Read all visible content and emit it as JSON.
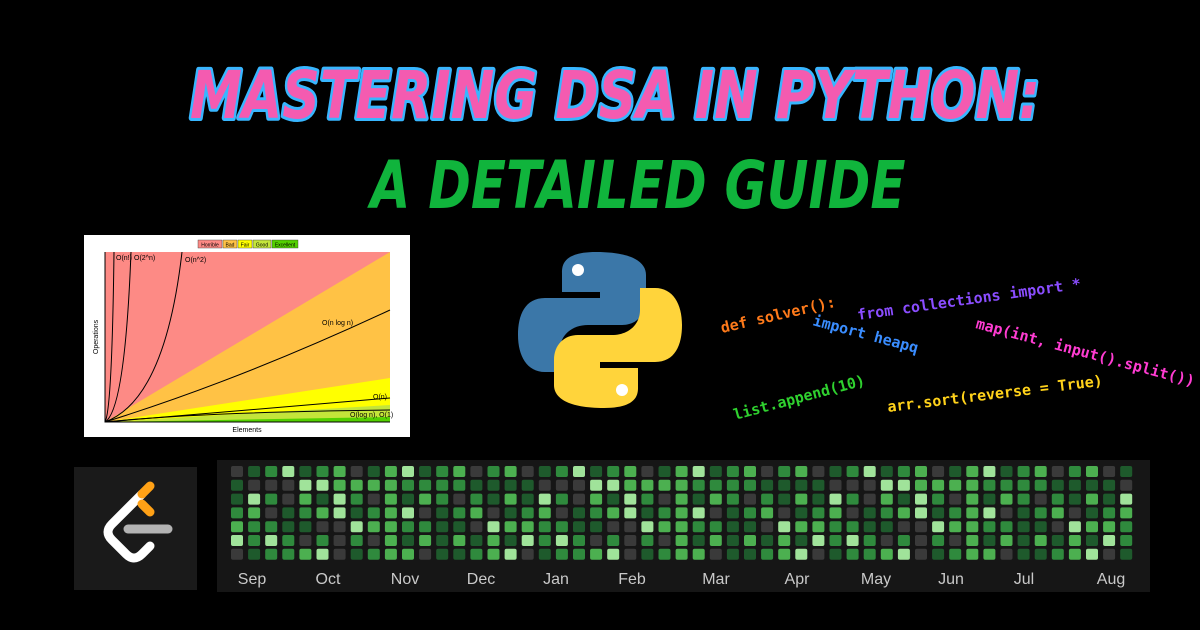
{
  "title": {
    "line1": "MASTERING DSA IN PYTHON:",
    "line2": "A DETAILED GUIDE"
  },
  "complexity_chart": {
    "legend": [
      "Horrible",
      "Bad",
      "Fair",
      "Good",
      "Excellent"
    ],
    "curve_labels": [
      "O(n!)",
      "O(2^n)",
      "O(n^2)",
      "O(n log n)",
      "O(n)",
      "O(log n), O(1)"
    ],
    "y_label": "Operations",
    "x_label": "Elements"
  },
  "code_snippets": [
    "def solver():",
    "from collections import *",
    "import heapq",
    "map(int, input().split())",
    "list.append(10)",
    "arr.sort(reverse = True)"
  ],
  "activity": {
    "months": [
      "Sep",
      "Oct",
      "Nov",
      "Dec",
      "Jan",
      "Feb",
      "Mar",
      "Apr",
      "May",
      "Jun",
      "Jul",
      "Aug"
    ]
  }
}
